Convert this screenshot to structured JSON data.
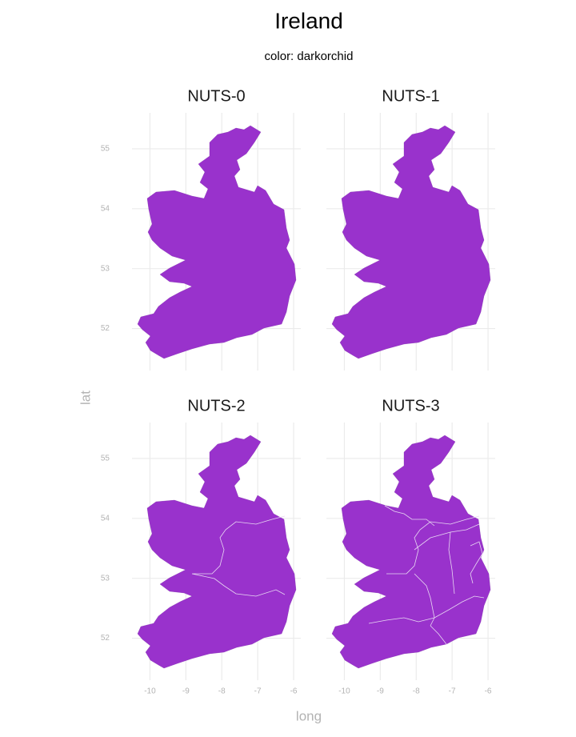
{
  "chart_data": {
    "type": "map",
    "title": "Ireland",
    "subtitle": "color: darkorchid",
    "facets": [
      "NUTS-0",
      "NUTS-1",
      "NUTS-2",
      "NUTS-3"
    ],
    "color": "#9932cc",
    "grid": true,
    "xlabel": "long",
    "ylabel": "lat",
    "xlim": [
      -10.5,
      -5.8
    ],
    "xticks": [
      -10,
      -9,
      -8,
      -7,
      -6
    ],
    "ylim": [
      51.3,
      55.6
    ],
    "yticks": [
      52,
      53,
      54,
      55
    ]
  }
}
